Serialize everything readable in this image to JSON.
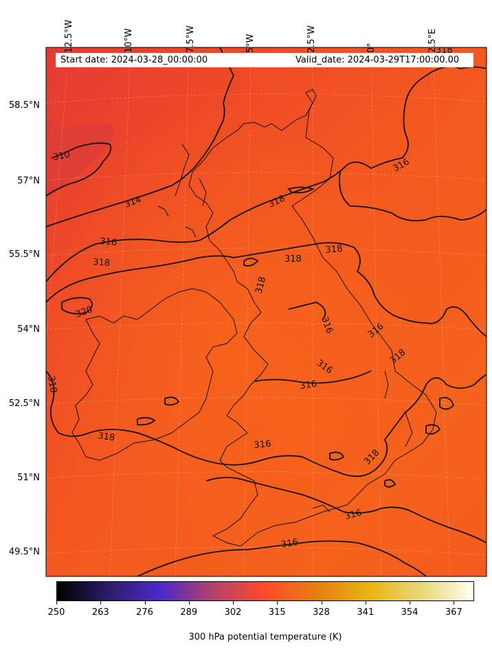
{
  "header": {
    "start_date": "Start date: 2024-03-28_00:00:00",
    "valid_date": "Valid_date: 2024-03-29T17:00:00.00"
  },
  "longitude_labels": [
    "12.5°W",
    "10°W",
    "7.5°W",
    "5°W",
    "2.5°W",
    "0°",
    "2.5°E"
  ],
  "latitude_labels": [
    "58.5°N",
    "57°N",
    "55.5°N",
    "54°N",
    "52.5°N",
    "51°N",
    "49.5°N"
  ],
  "contour_labels": [
    {
      "text": "310"
    },
    {
      "text": "314"
    },
    {
      "text": "316"
    },
    {
      "text": "318"
    },
    {
      "text": "320"
    },
    {
      "text": "318"
    },
    {
      "text": "318"
    },
    {
      "text": "316"
    },
    {
      "text": "318"
    },
    {
      "text": "318"
    },
    {
      "text": "318"
    },
    {
      "text": "318"
    },
    {
      "text": "316"
    },
    {
      "text": "316"
    },
    {
      "text": "318"
    },
    {
      "text": "316"
    },
    {
      "text": "316"
    },
    {
      "text": "316"
    },
    {
      "text": "316"
    },
    {
      "text": "316"
    },
    {
      "text": "318"
    },
    {
      "text": "318"
    },
    {
      "text": "316"
    },
    {
      "text": "318"
    }
  ],
  "colorbar": {
    "title": "300 hPa potential temperature (K)",
    "tick_labels": [
      "250",
      "263",
      "276",
      "289",
      "302",
      "315",
      "328",
      "341",
      "354",
      "367"
    ],
    "range": [
      250,
      373
    ],
    "colors": [
      "#000000",
      "#2c1d6c",
      "#4e28c8",
      "#b3426a",
      "#ff4a2a",
      "#e57f10",
      "#e9b512",
      "#e8d878",
      "#fffff0"
    ]
  },
  "field_colors": {
    "background": "#f2541f",
    "warm": "#f6611c",
    "cool": "#e53f33",
    "coast": "#111111",
    "contour": "#111111"
  }
}
